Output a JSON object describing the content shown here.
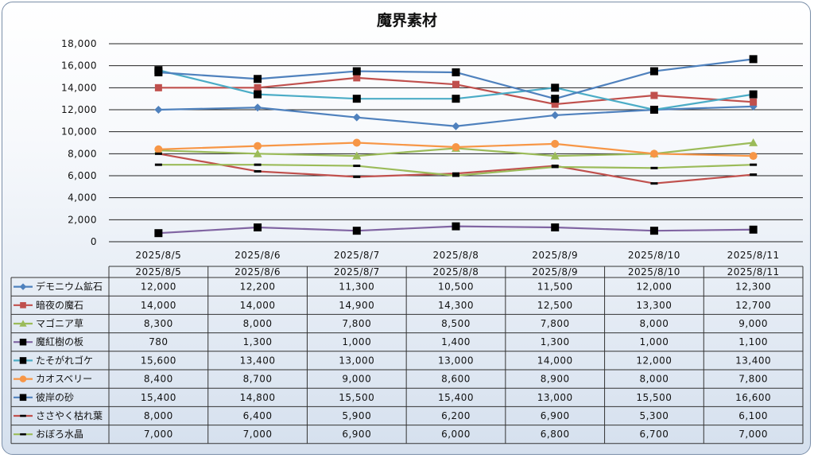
{
  "chart_data": {
    "type": "line",
    "title": "魔界素材",
    "categories": [
      "2025/8/5",
      "2025/8/6",
      "2025/8/7",
      "2025/8/8",
      "2025/8/9",
      "2025/8/10",
      "2025/8/11"
    ],
    "ylim": [
      0,
      18000
    ],
    "yticks": [
      0,
      2000,
      4000,
      6000,
      8000,
      10000,
      12000,
      14000,
      16000,
      18000
    ],
    "ytick_labels": [
      "0",
      "2,000",
      "4,000",
      "6,000",
      "8,000",
      "10,000",
      "12,000",
      "14,000",
      "16,000",
      "18,000"
    ],
    "grid": true,
    "legend": "data-table",
    "series": [
      {
        "name": "デモニウム鉱石",
        "color": "#4f81bd",
        "marker": "diamond",
        "values": [
          12000,
          12200,
          11300,
          10500,
          11500,
          12000,
          12300
        ],
        "labels": [
          "12,000",
          "12,200",
          "11,300",
          "10,500",
          "11,500",
          "12,000",
          "12,300"
        ]
      },
      {
        "name": "暗夜の魔石",
        "color": "#c0504d",
        "marker": "square",
        "values": [
          14000,
          14000,
          14900,
          14300,
          12500,
          13300,
          12700
        ],
        "labels": [
          "14,000",
          "14,000",
          "14,900",
          "14,300",
          "12,500",
          "13,300",
          "12,700"
        ]
      },
      {
        "name": "マゴニア草",
        "color": "#9bbb59",
        "marker": "triangle",
        "values": [
          8300,
          8000,
          7800,
          8500,
          7800,
          8000,
          9000
        ],
        "labels": [
          "8,300",
          "8,000",
          "7,800",
          "8,500",
          "7,800",
          "8,000",
          "9,000"
        ]
      },
      {
        "name": "魔紅樹の板",
        "color": "#8064a2",
        "marker": "black-square",
        "values": [
          780,
          1300,
          1000,
          1400,
          1300,
          1000,
          1100
        ],
        "labels": [
          "780",
          "1,300",
          "1,000",
          "1,400",
          "1,300",
          "1,000",
          "1,100"
        ]
      },
      {
        "name": "たそがれゴケ",
        "color": "#4bacc6",
        "marker": "black-square",
        "values": [
          15600,
          13400,
          13000,
          13000,
          14000,
          12000,
          13400
        ],
        "labels": [
          "15,600",
          "13,400",
          "13,000",
          "13,000",
          "14,000",
          "12,000",
          "13,400"
        ]
      },
      {
        "name": "カオスベリー",
        "color": "#f79646",
        "marker": "circle",
        "values": [
          8400,
          8700,
          9000,
          8600,
          8900,
          8000,
          7800
        ],
        "labels": [
          "8,400",
          "8,700",
          "9,000",
          "8,600",
          "8,900",
          "8,000",
          "7,800"
        ]
      },
      {
        "name": "彼岸の砂",
        "color": "#4f81bd",
        "marker": "black-square",
        "values": [
          15400,
          14800,
          15500,
          15400,
          13000,
          15500,
          16600
        ],
        "labels": [
          "15,400",
          "14,800",
          "15,500",
          "15,400",
          "13,000",
          "15,500",
          "16,600"
        ]
      },
      {
        "name": "ささやく枯れ葉",
        "color": "#c0504d",
        "marker": "black-dash",
        "values": [
          8000,
          6400,
          5900,
          6200,
          6900,
          5300,
          6100
        ],
        "labels": [
          "8,000",
          "6,400",
          "5,900",
          "6,200",
          "6,900",
          "5,300",
          "6,100"
        ]
      },
      {
        "name": "おぼろ水晶",
        "color": "#9bbb59",
        "marker": "black-dash",
        "values": [
          7000,
          7000,
          6900,
          6000,
          6800,
          6700,
          7000
        ],
        "labels": [
          "7,000",
          "7,000",
          "6,900",
          "6,000",
          "6,800",
          "6,700",
          "7,000"
        ]
      }
    ]
  }
}
